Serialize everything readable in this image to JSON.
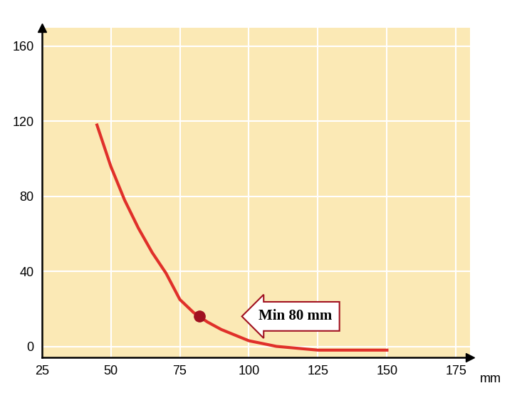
{
  "chart_data": {
    "type": "line",
    "x": [
      45,
      50,
      55,
      60,
      65,
      70,
      75,
      80,
      85,
      90,
      100,
      110,
      125,
      150
    ],
    "values": [
      118,
      96,
      78,
      63,
      50,
      39,
      25,
      18,
      13,
      9,
      3,
      0,
      -2,
      -2
    ],
    "color": "#e0302a",
    "x_label": "mm",
    "xlim": [
      25,
      180
    ],
    "xticks": [
      25,
      50,
      75,
      100,
      125,
      150,
      175
    ],
    "ylim": [
      -6,
      170
    ],
    "yticks": [
      0,
      40,
      80,
      120,
      160
    ],
    "grid": true,
    "annotations": [
      {
        "text": "Min 80 mm",
        "x": 82,
        "y": 16
      }
    ]
  }
}
